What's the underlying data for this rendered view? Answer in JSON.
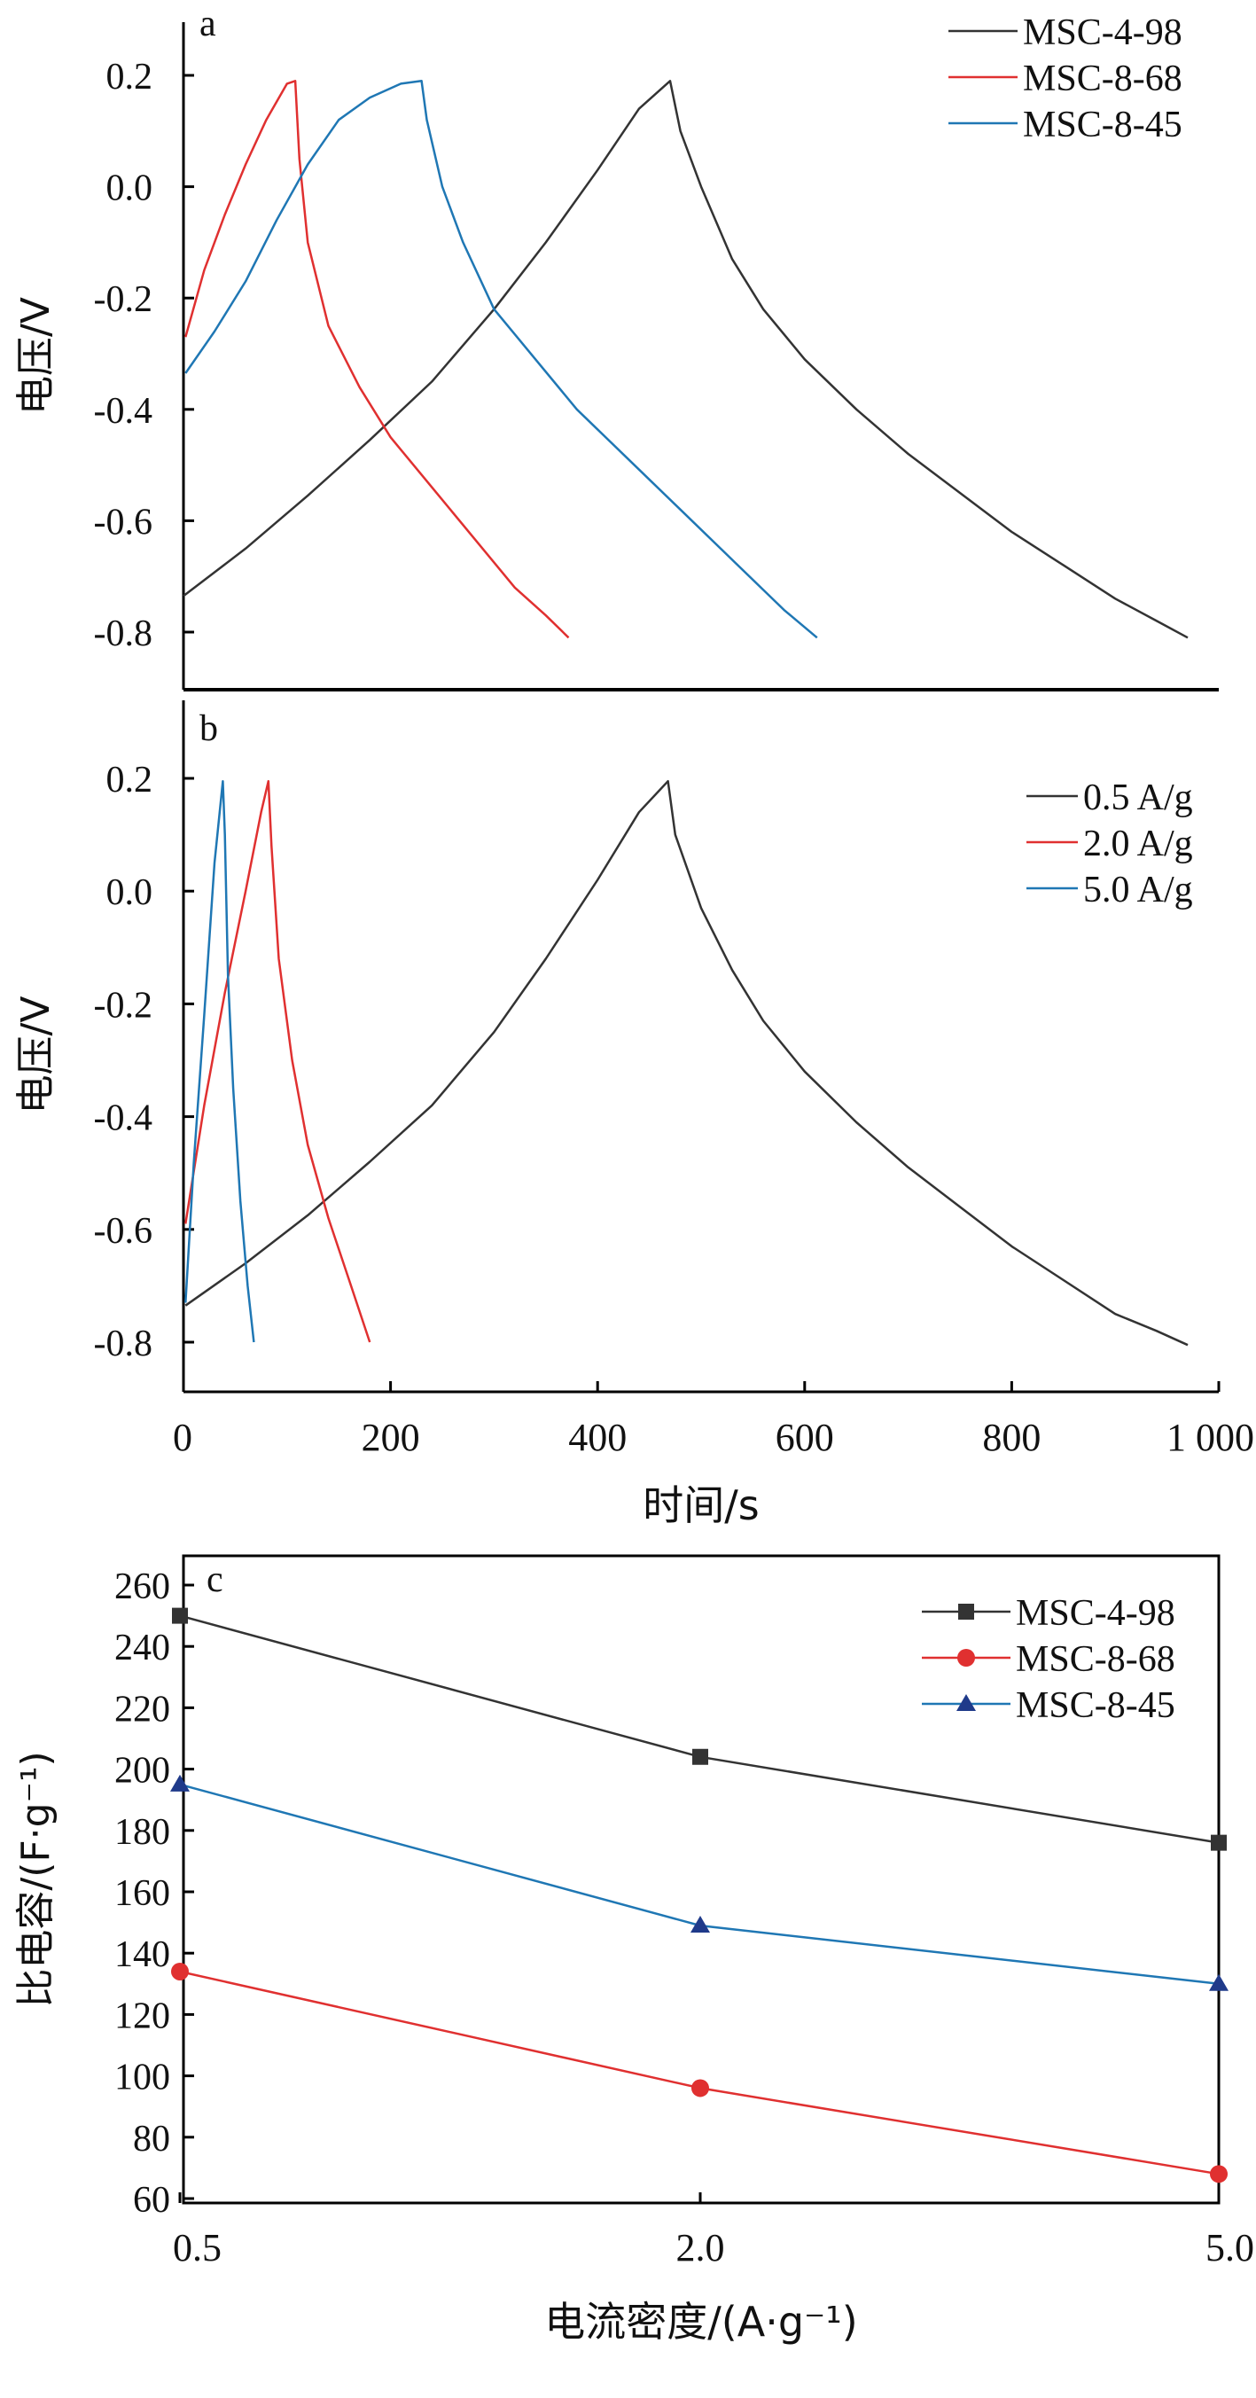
{
  "chart_data": [
    {
      "panel": "a",
      "type": "line",
      "xlabel": "",
      "ylabel": "电压/V",
      "xlim": [
        0,
        1000
      ],
      "ylim": [
        -0.88,
        0.25
      ],
      "yticks": [
        "0.2",
        "0.0",
        "-0.2",
        "-0.4",
        "-0.6",
        "-0.8"
      ],
      "ytick_values": [
        0.2,
        0.0,
        -0.2,
        -0.4,
        -0.6,
        -0.8
      ],
      "legend_position": "top-right",
      "series": [
        {
          "name": "MSC-4-98",
          "color": "#333333",
          "x": [
            0,
            60,
            120,
            180,
            240,
            300,
            350,
            400,
            440,
            470,
            480,
            500,
            530,
            560,
            600,
            650,
            700,
            750,
            800,
            850,
            900,
            940,
            970
          ],
          "y": [
            -0.735,
            -0.65,
            -0.555,
            -0.455,
            -0.35,
            -0.22,
            -0.1,
            0.03,
            0.14,
            0.19,
            0.1,
            0.0,
            -0.13,
            -0.22,
            -0.31,
            -0.4,
            -0.48,
            -0.55,
            -0.62,
            -0.68,
            -0.74,
            -0.78,
            -0.81
          ]
        },
        {
          "name": "MSC-8-68",
          "color": "#e03030",
          "x": [
            2,
            20,
            40,
            60,
            80,
            100,
            108,
            112,
            120,
            140,
            170,
            200,
            240,
            280,
            320,
            350,
            372
          ],
          "y": [
            -0.27,
            -0.15,
            -0.05,
            0.04,
            0.12,
            0.185,
            0.19,
            0.05,
            -0.1,
            -0.25,
            -0.36,
            -0.45,
            -0.54,
            -0.63,
            -0.72,
            -0.77,
            -0.81
          ]
        },
        {
          "name": "MSC-8-45",
          "color": "#1f77b4",
          "x": [
            2,
            30,
            60,
            90,
            120,
            150,
            180,
            210,
            230,
            235,
            250,
            270,
            300,
            340,
            380,
            430,
            480,
            530,
            580,
            612
          ],
          "y": [
            -0.335,
            -0.26,
            -0.17,
            -0.06,
            0.04,
            0.12,
            0.16,
            0.185,
            0.19,
            0.12,
            0.0,
            -0.1,
            -0.22,
            -0.31,
            -0.4,
            -0.49,
            -0.58,
            -0.67,
            -0.76,
            -0.81
          ]
        }
      ]
    },
    {
      "panel": "b",
      "type": "line",
      "xlabel": "时间/s",
      "ylabel": "电压/V",
      "xlim": [
        0,
        1000
      ],
      "ylim": [
        -0.92,
        0.28
      ],
      "xticks": [
        "0",
        "200",
        "400",
        "600",
        "800",
        "1 000"
      ],
      "xtick_values": [
        0,
        200,
        400,
        600,
        800,
        1000
      ],
      "yticks": [
        "0.2",
        "0.0",
        "-0.2",
        "-0.4",
        "-0.6",
        "-0.8"
      ],
      "ytick_values": [
        0.2,
        0.0,
        -0.2,
        -0.4,
        -0.6,
        -0.8
      ],
      "legend_position": "top-right",
      "series": [
        {
          "name": "0.5 A/g",
          "color": "#333333",
          "x": [
            2,
            60,
            120,
            180,
            240,
            300,
            350,
            400,
            440,
            468,
            475,
            500,
            530,
            560,
            600,
            650,
            700,
            750,
            800,
            850,
            900,
            940,
            970
          ],
          "y": [
            -0.735,
            -0.66,
            -0.575,
            -0.48,
            -0.38,
            -0.25,
            -0.12,
            0.02,
            0.14,
            0.195,
            0.1,
            -0.03,
            -0.14,
            -0.23,
            -0.32,
            -0.41,
            -0.49,
            -0.56,
            -0.63,
            -0.69,
            -0.75,
            -0.78,
            -0.805
          ]
        },
        {
          "name": "2.0 A/g",
          "color": "#e03030",
          "x": [
            2,
            20,
            40,
            60,
            75,
            82,
            85,
            92,
            105,
            120,
            140,
            160,
            180
          ],
          "y": [
            -0.59,
            -0.38,
            -0.18,
            0.0,
            0.14,
            0.195,
            0.08,
            -0.12,
            -0.3,
            -0.45,
            -0.58,
            -0.69,
            -0.8
          ]
        },
        {
          "name": "5.0 A/g",
          "color": "#1f77b4",
          "x": [
            2,
            10,
            20,
            30,
            38,
            40,
            43,
            48,
            55,
            62,
            68
          ],
          "y": [
            -0.73,
            -0.48,
            -0.22,
            0.05,
            0.195,
            0.1,
            -0.15,
            -0.35,
            -0.55,
            -0.7,
            -0.8
          ]
        }
      ]
    },
    {
      "panel": "c",
      "type": "line",
      "xlabel": "电流密度/(A·g⁻¹)",
      "ylabel": "比电容/(F·g⁻¹)",
      "categories": [
        "0.5",
        "2.0",
        "5.0"
      ],
      "ylim": [
        60,
        260
      ],
      "yticks": [
        "260",
        "240",
        "220",
        "200",
        "180",
        "160",
        "140",
        "120",
        "100",
        "80",
        "60"
      ],
      "ytick_values": [
        260,
        240,
        220,
        200,
        180,
        160,
        140,
        120,
        100,
        80,
        60
      ],
      "legend_position": "top-right",
      "series": [
        {
          "name": "MSC-4-98",
          "color": "#333333",
          "marker": "square",
          "values": [
            250,
            204,
            176
          ]
        },
        {
          "name": "MSC-8-68",
          "color": "#e03030",
          "marker": "circle",
          "values": [
            134,
            96,
            68
          ]
        },
        {
          "name": "MSC-8-45",
          "color": "#1f3a8a",
          "line_color": "#1f77b4",
          "marker": "triangle",
          "values": [
            195,
            149,
            130
          ]
        }
      ]
    }
  ]
}
